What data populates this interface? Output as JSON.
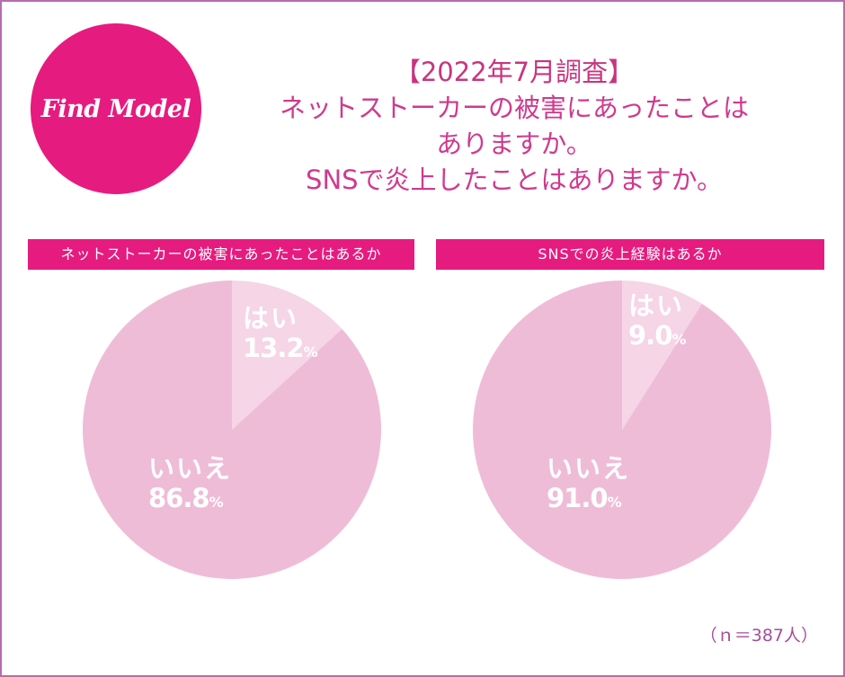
{
  "logo": {
    "text": "Find Model",
    "color": "#e61b7f"
  },
  "header": {
    "lines": [
      "【2022年7月調査】",
      "ネットストーカーの被害にあったことは",
      "ありますか。",
      "SNSで炎上したことはありますか。"
    ]
  },
  "colors": {
    "accent": "#e61b7f",
    "title_text": "#cf3a8e",
    "border": "#b86bb0",
    "pie_major": "#efbcd8",
    "pie_minor": "#f5d5e6"
  },
  "footer": {
    "sample_note": "（ｎ＝387人）"
  },
  "chart_data": [
    {
      "type": "pie",
      "title": "ネットストーカーの被害にあったことはあるか",
      "categories": [
        "はい",
        "いいえ"
      ],
      "values": [
        13.2,
        86.8
      ],
      "labels": [
        "13.2",
        "86.8"
      ],
      "unit": "%",
      "colors": [
        "#f5d5e6",
        "#efbcd8"
      ],
      "start_angle": "12 o'clock, clockwise"
    },
    {
      "type": "pie",
      "title": "SNSでの炎上経験はあるか",
      "categories": [
        "はい",
        "いいえ"
      ],
      "values": [
        9.0,
        91.0
      ],
      "labels": [
        "9.0",
        "91.0"
      ],
      "unit": "%",
      "colors": [
        "#f5d5e6",
        "#efbcd8"
      ],
      "start_angle": "12 o'clock, clockwise"
    }
  ]
}
